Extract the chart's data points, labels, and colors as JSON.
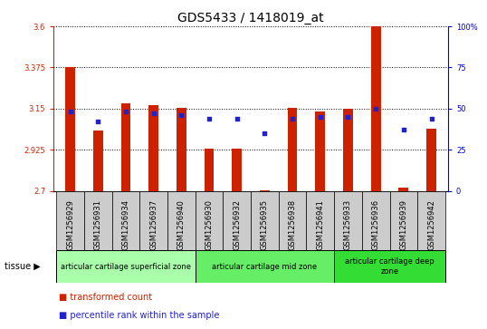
{
  "title": "GDS5433 / 1418019_at",
  "samples": [
    "GSM1256929",
    "GSM1256931",
    "GSM1256934",
    "GSM1256937",
    "GSM1256940",
    "GSM1256930",
    "GSM1256932",
    "GSM1256935",
    "GSM1256938",
    "GSM1256941",
    "GSM1256933",
    "GSM1256936",
    "GSM1256939",
    "GSM1256942"
  ],
  "transformed_count": [
    3.375,
    3.03,
    3.18,
    3.17,
    3.155,
    2.93,
    2.93,
    2.705,
    3.155,
    3.135,
    3.15,
    3.6,
    2.72,
    3.04
  ],
  "percentile_rank": [
    48,
    42,
    48,
    47,
    46,
    44,
    44,
    35,
    44,
    45,
    45,
    50,
    37,
    44
  ],
  "ylim_left": [
    2.7,
    3.6
  ],
  "ylim_right": [
    0,
    100
  ],
  "yticks_left": [
    2.7,
    2.925,
    3.15,
    3.375,
    3.6
  ],
  "ytick_labels_left": [
    "2.7",
    "2.925",
    "3.15",
    "3.375",
    "3.6"
  ],
  "yticks_right": [
    0,
    25,
    50,
    75,
    100
  ],
  "ytick_labels_right": [
    "0",
    "25",
    "50",
    "75",
    "100%"
  ],
  "bar_color": "#cc2200",
  "dot_color": "#2222cc",
  "bar_bottom": 2.7,
  "groups": [
    {
      "label": "articular cartilage superficial zone",
      "start": 0,
      "end": 4,
      "color": "#aaffaa"
    },
    {
      "label": "articular cartilage mid zone",
      "start": 5,
      "end": 9,
      "color": "#66ee66"
    },
    {
      "label": "articular cartilage deep\nzone",
      "start": 10,
      "end": 13,
      "color": "#33dd33"
    }
  ],
  "legend_bar_label": "transformed count",
  "legend_dot_label": "percentile rank within the sample",
  "tissue_label": "tissue",
  "plot_bg_color": "#ffffff",
  "tick_box_color": "#cccccc",
  "title_fontsize": 10,
  "tick_fontsize": 6,
  "label_fontsize": 7,
  "group_fontsize": 6
}
